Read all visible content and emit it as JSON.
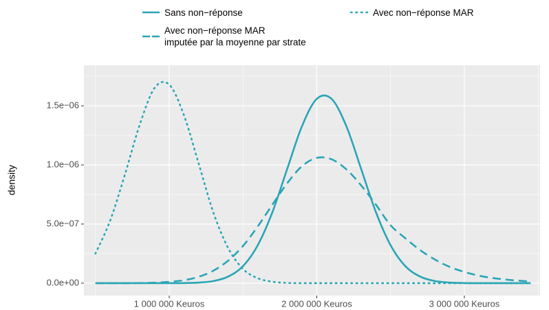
{
  "chart_data": {
    "type": "line",
    "ylabel": "density",
    "x": [
      500000,
      600000,
      700000,
      800000,
      900000,
      1000000,
      1100000,
      1200000,
      1300000,
      1400000,
      1500000,
      1600000,
      1700000,
      1800000,
      1900000,
      2000000,
      2100000,
      2200000,
      2300000,
      2400000,
      2500000,
      2600000,
      2700000,
      2800000,
      2900000,
      3000000,
      3100000,
      3200000,
      3300000,
      3400000,
      3450000
    ],
    "series": [
      {
        "name": "Sans non−réponse",
        "color": "#29a5b6",
        "dash": "solid",
        "values": [
          0,
          0,
          0,
          0,
          0,
          0,
          1e-09,
          5e-09,
          1.8e-08,
          5.6e-08,
          1.44e-07,
          3.21e-07,
          6.03e-07,
          9.68e-07,
          1.329e-06,
          1.559e-06,
          1.559e-06,
          1.329e-06,
          9.68e-07,
          6.03e-07,
          3.21e-07,
          1.44e-07,
          5.6e-08,
          1.8e-08,
          5e-09,
          1e-09,
          0,
          0,
          0,
          0,
          0
        ]
      },
      {
        "name": "Avec non−réponse MAR",
        "color": "#29a5b6",
        "dash": "dotted",
        "values": [
          2.5e-07,
          5.3e-07,
          9.2e-07,
          1.34e-06,
          1.65e-06,
          1.68e-06,
          1.42e-06,
          1.01e-06,
          5.95e-07,
          2.96e-07,
          1.2e-07,
          4.2e-08,
          1.2e-08,
          2e-09,
          0,
          0,
          0,
          0,
          0,
          0,
          0,
          0,
          0,
          0,
          0,
          0,
          0,
          0,
          0,
          0,
          0
        ]
      },
      {
        "name": "Avec non−réponse MAR\nimputée par la moyenne par strate",
        "color": "#29a5b6",
        "dash": "dashed",
        "values": [
          0,
          0,
          0,
          1e-09,
          4e-09,
          1.1e-08,
          2.5e-08,
          5.4e-08,
          1.06e-07,
          1.91e-07,
          3.15e-07,
          4.8e-07,
          6.66e-07,
          8.46e-07,
          9.9e-07,
          1.06e-06,
          1.048e-06,
          9.63e-07,
          8.28e-07,
          6.65e-07,
          4.9e-07,
          3.8e-07,
          2.8e-07,
          2e-07,
          1.38e-07,
          9.5e-08,
          6.3e-08,
          4.2e-08,
          2.8e-08,
          1.8e-08,
          1.5e-08
        ]
      }
    ],
    "xlim": [
      422000,
      3513000
    ],
    "ylim": [
      -1.05e-07,
      1.843e-06
    ],
    "xticks": [
      {
        "value": 1000000,
        "label": "1 000 000 Keuros"
      },
      {
        "value": 2000000,
        "label": "2 000 000 Keuros"
      },
      {
        "value": 3000000,
        "label": "3 000 000 Keuros"
      }
    ],
    "yticks": [
      {
        "value": 0,
        "label": "0.0e+00"
      },
      {
        "value": 5e-07,
        "label": "5.0e−07"
      },
      {
        "value": 1e-06,
        "label": "1.0e−06"
      },
      {
        "value": 1.5e-06,
        "label": "1.5e−06"
      }
    ],
    "xminor": [
      500000,
      1500000,
      2500000,
      3500000
    ],
    "yminor": [
      2.5e-07,
      7.5e-07,
      1.25e-06,
      1.75e-06
    ],
    "grid": true,
    "legend": "top"
  }
}
